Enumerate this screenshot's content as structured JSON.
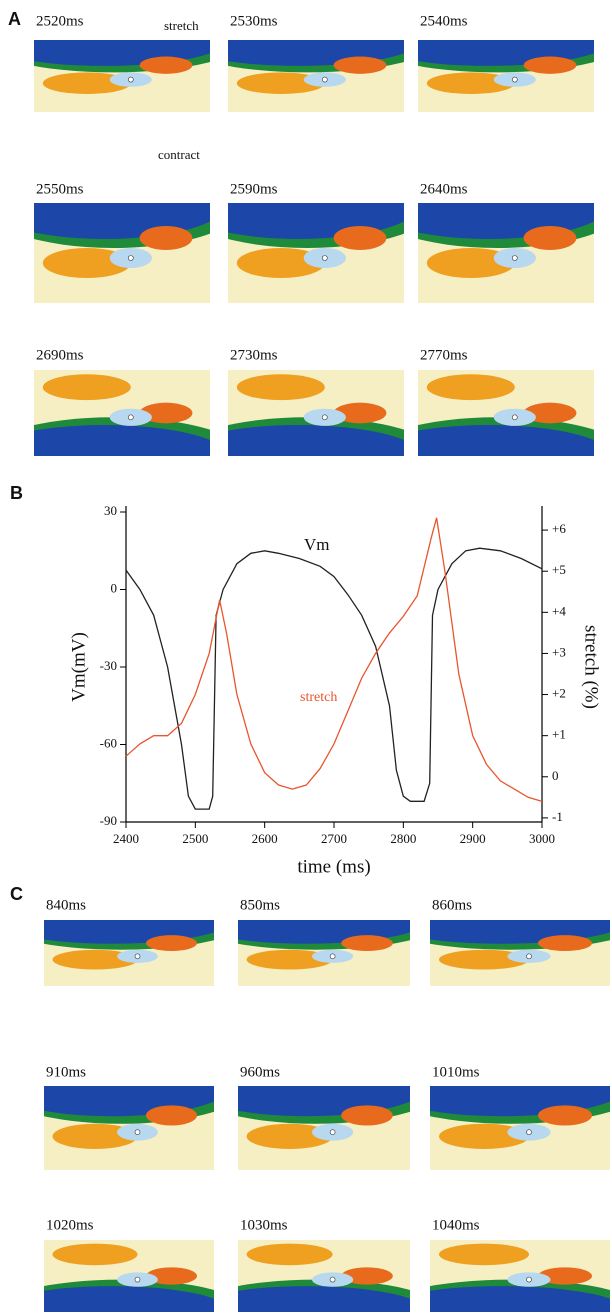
{
  "panel_a": {
    "label": "A",
    "annotations": [
      "stretch",
      "contract"
    ],
    "frames": [
      "2520ms",
      "2530ms",
      "2540ms",
      "2550ms",
      "2590ms",
      "2640ms",
      "2690ms",
      "2730ms",
      "2770ms"
    ]
  },
  "chart_data": {
    "type": "line",
    "label": "B",
    "x_label": "time (ms)",
    "y_label": "Vm(mV)",
    "y2_label": "stretch (%)",
    "xlim": [
      2400,
      3000
    ],
    "xticks": [
      2400,
      2500,
      2600,
      2700,
      2800,
      2900,
      3000
    ],
    "ylim": [
      -90,
      30
    ],
    "yticks": [
      -90,
      -60,
      -30,
      0,
      30
    ],
    "y2lim": [
      -1.1,
      6.44
    ],
    "y2ticks": [
      -1,
      0,
      {
        "value": 1,
        "label": "+1"
      },
      {
        "value": 2,
        "label": "+2"
      },
      {
        "value": 3,
        "label": "+3"
      },
      {
        "value": 4,
        "label": "+4"
      },
      {
        "value": 5,
        "label": "+5"
      },
      {
        "value": 6,
        "label": "+6"
      }
    ],
    "series": [
      {
        "name": "Vm",
        "color": "#222222",
        "x": [
          2400,
          2420,
          2440,
          2460,
          2480,
          2490,
          2500,
          2520,
          2525,
          2530,
          2540,
          2560,
          2580,
          2600,
          2620,
          2650,
          2680,
          2700,
          2720,
          2740,
          2760,
          2780,
          2790,
          2800,
          2810,
          2830,
          2838,
          2842,
          2850,
          2870,
          2890,
          2910,
          2940,
          2970,
          3000
        ],
        "values": [
          7.5,
          0,
          -10,
          -30,
          -60,
          -80,
          -85,
          -85,
          -80,
          -10,
          0,
          10,
          14,
          15,
          14,
          12,
          9,
          5,
          -2,
          -10,
          -22,
          -45,
          -70,
          -80,
          -82,
          -82,
          -75,
          -10,
          0,
          10,
          15,
          16,
          15,
          12,
          8
        ]
      },
      {
        "name": "stretch",
        "color": "#e8552e",
        "axis": "y2",
        "x": [
          2400,
          2420,
          2440,
          2460,
          2480,
          2500,
          2520,
          2535,
          2545,
          2560,
          2580,
          2600,
          2620,
          2640,
          2660,
          2680,
          2700,
          2720,
          2740,
          2760,
          2780,
          2800,
          2820,
          2840,
          2848,
          2860,
          2880,
          2900,
          2920,
          2940,
          2960,
          2980,
          3000
        ],
        "values": [
          0.5,
          0.8,
          1.0,
          1.0,
          1.3,
          2.0,
          3.0,
          4.3,
          3.5,
          2.0,
          0.8,
          0.1,
          -0.2,
          -0.3,
          -0.2,
          0.2,
          0.8,
          1.6,
          2.4,
          3.0,
          3.5,
          3.9,
          4.4,
          5.8,
          6.3,
          5.0,
          2.5,
          1.0,
          0.3,
          -0.1,
          -0.3,
          -0.5,
          -0.6
        ]
      }
    ]
  },
  "panel_c": {
    "label": "C",
    "frames": [
      "840ms",
      "850ms",
      "860ms",
      "910ms",
      "960ms",
      "1010ms",
      "1020ms",
      "1030ms",
      "1040ms"
    ]
  }
}
